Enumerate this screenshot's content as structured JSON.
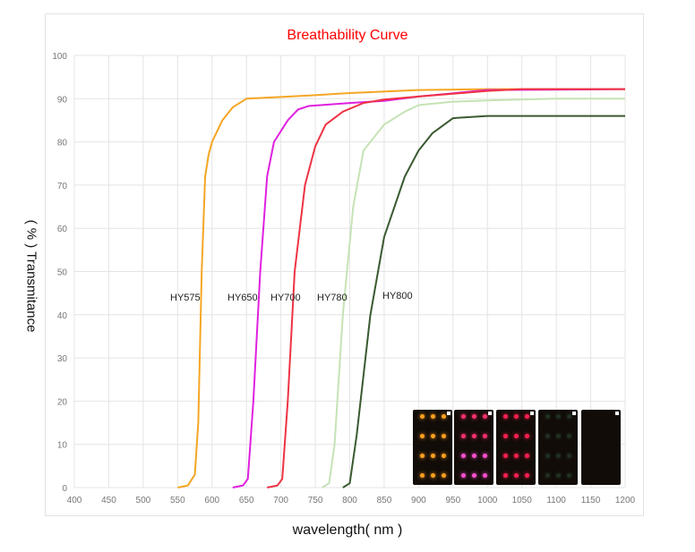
{
  "chart_data": {
    "type": "line",
    "title": "Breathability Curve",
    "xlabel": "wavelength( nm )",
    "ylabel": "( % ) Transmitance",
    "xlim": [
      400,
      1200
    ],
    "ylim": [
      0,
      100
    ],
    "xticks": [
      400,
      450,
      500,
      550,
      600,
      650,
      700,
      750,
      800,
      850,
      900,
      950,
      1000,
      1050,
      1100,
      1150,
      1200
    ],
    "yticks": [
      0,
      10,
      20,
      30,
      40,
      50,
      60,
      70,
      80,
      90,
      100
    ],
    "grid": true,
    "series": [
      {
        "name": "HY575",
        "color": "#f5a623",
        "points": [
          [
            550,
            0
          ],
          [
            565,
            0.5
          ],
          [
            575,
            3
          ],
          [
            580,
            15
          ],
          [
            585,
            50
          ],
          [
            590,
            72
          ],
          [
            595,
            77
          ],
          [
            600,
            80
          ],
          [
            615,
            85
          ],
          [
            630,
            88
          ],
          [
            650,
            90
          ],
          [
            700,
            90.4
          ],
          [
            750,
            90.8
          ],
          [
            800,
            91.3
          ],
          [
            900,
            92
          ],
          [
            1000,
            92.2
          ],
          [
            1200,
            92.2
          ]
        ]
      },
      {
        "name": "HY650",
        "color": "#e020e0",
        "points": [
          [
            630,
            0
          ],
          [
            645,
            0.5
          ],
          [
            652,
            2
          ],
          [
            660,
            20
          ],
          [
            670,
            50
          ],
          [
            680,
            72
          ],
          [
            690,
            80
          ],
          [
            710,
            85
          ],
          [
            725,
            87.5
          ],
          [
            740,
            88.3
          ],
          [
            800,
            89
          ],
          [
            850,
            89.5
          ],
          [
            900,
            90.5
          ],
          [
            1000,
            92
          ],
          [
            1200,
            92.2
          ]
        ]
      },
      {
        "name": "HY700",
        "color": "#ee3344",
        "points": [
          [
            680,
            0
          ],
          [
            695,
            0.5
          ],
          [
            702,
            2
          ],
          [
            710,
            20
          ],
          [
            720,
            50
          ],
          [
            735,
            70
          ],
          [
            750,
            79
          ],
          [
            765,
            84
          ],
          [
            790,
            87
          ],
          [
            820,
            89
          ],
          [
            850,
            89.8
          ],
          [
            900,
            90.5
          ],
          [
            1000,
            91.8
          ],
          [
            1050,
            92.2
          ],
          [
            1200,
            92.2
          ]
        ]
      },
      {
        "name": "HY780",
        "color": "#c5e3b5",
        "points": [
          [
            760,
            0
          ],
          [
            770,
            1
          ],
          [
            778,
            10
          ],
          [
            790,
            40
          ],
          [
            805,
            65
          ],
          [
            820,
            78
          ],
          [
            850,
            84
          ],
          [
            880,
            87
          ],
          [
            900,
            88.5
          ],
          [
            950,
            89.3
          ],
          [
            1000,
            89.6
          ],
          [
            1100,
            90
          ],
          [
            1200,
            90
          ]
        ]
      },
      {
        "name": "HY800",
        "color": "#3a5a30",
        "points": [
          [
            790,
            0
          ],
          [
            800,
            1
          ],
          [
            810,
            12
          ],
          [
            830,
            40
          ],
          [
            850,
            58
          ],
          [
            880,
            72
          ],
          [
            900,
            78
          ],
          [
            920,
            82
          ],
          [
            950,
            85.5
          ],
          [
            1000,
            86
          ],
          [
            1200,
            86
          ]
        ]
      }
    ]
  }
}
